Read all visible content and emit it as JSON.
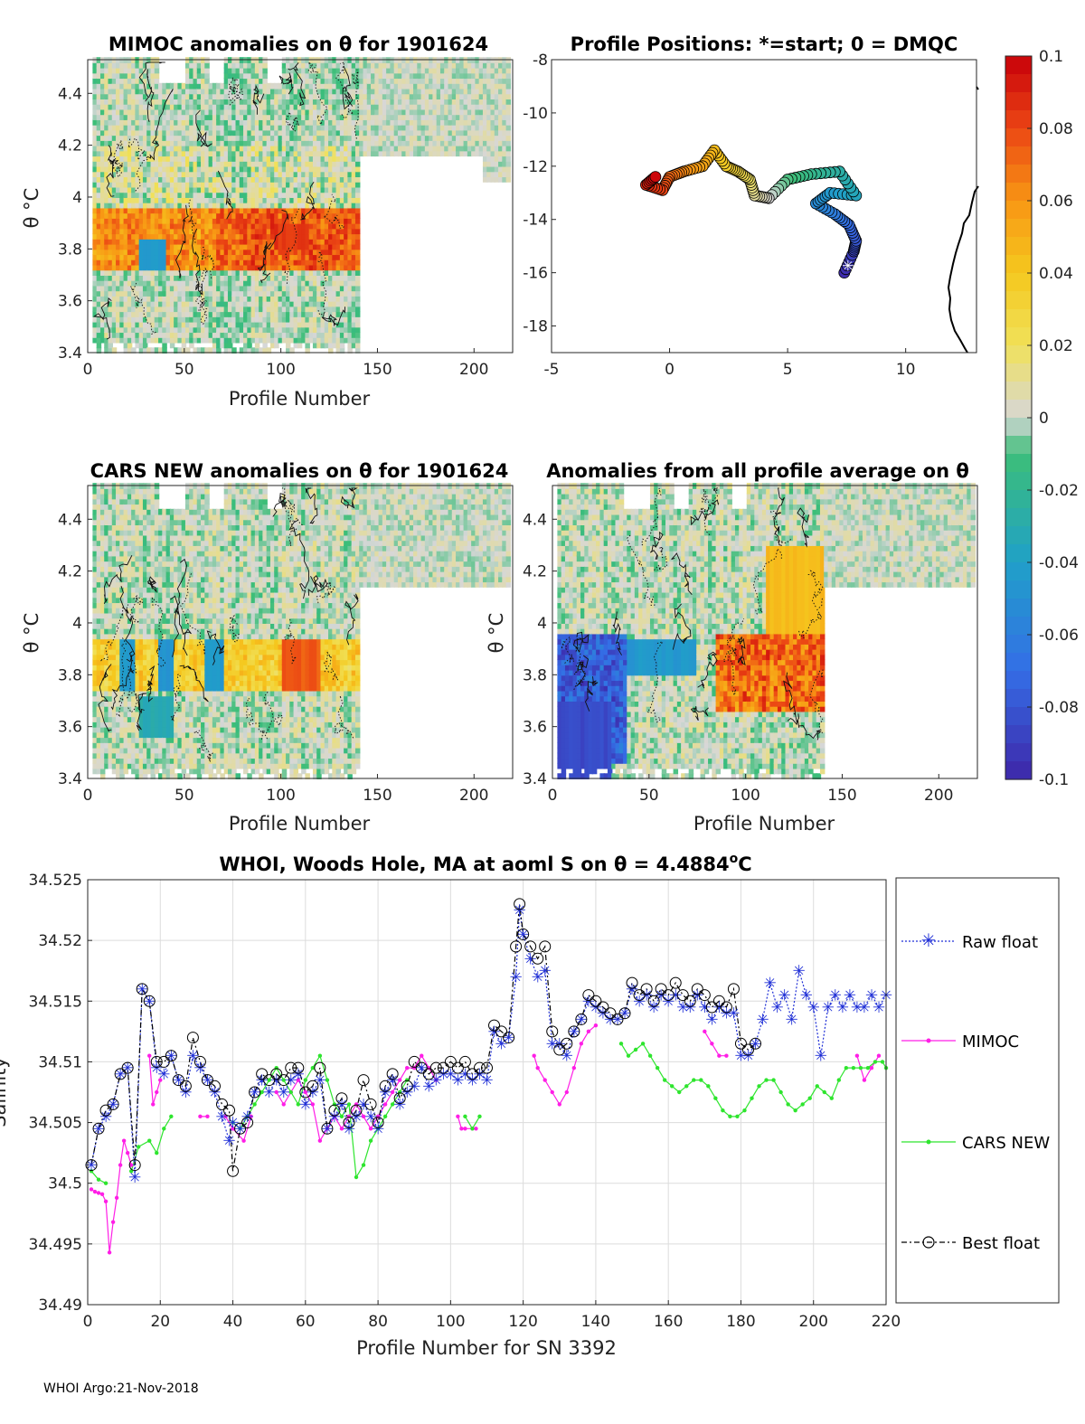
{
  "footer": "WHOI Argo:21-Nov-2018",
  "chart_data": [
    {
      "type": "heatmap",
      "title": "MIMOC anomalies on θ  for 1901624",
      "xlabel": "Profile Number",
      "ylabel": "θ °C",
      "xlim": [
        0,
        220
      ],
      "ylim": [
        3.4,
        4.53
      ],
      "xticks": [
        "0",
        "50",
        "100",
        "150",
        "200"
      ],
      "yticks": [
        "3.4",
        "3.6",
        "3.8",
        "4",
        "4.2",
        "4.4"
      ],
      "anomaly_band": {
        "theta_min": 3.7,
        "theta_max": 3.95,
        "max_anomaly": 0.09,
        "profiles": [
          0,
          140
        ]
      }
    },
    {
      "type": "scatter",
      "title": "Profile Positions: *=start; 0 = DMQC",
      "xlim": [
        -5,
        13
      ],
      "ylim": [
        -19,
        -8
      ],
      "xticks": [
        "-5",
        "0",
        "5",
        "10"
      ],
      "yticks": [
        "-8",
        "-10",
        "-12",
        "-14",
        "-16",
        "-18"
      ],
      "track": [
        [
          7.4,
          -16.0
        ],
        [
          7.8,
          -15.2
        ],
        [
          7.9,
          -14.8
        ],
        [
          7.6,
          -14.2
        ],
        [
          7.0,
          -13.8
        ],
        [
          6.2,
          -13.4
        ],
        [
          6.8,
          -13.0
        ],
        [
          7.9,
          -13.1
        ],
        [
          7.2,
          -12.2
        ],
        [
          6.0,
          -12.3
        ],
        [
          5.0,
          -12.5
        ],
        [
          4.2,
          -13.2
        ],
        [
          3.6,
          -13.1
        ],
        [
          3.4,
          -12.5
        ],
        [
          2.9,
          -12.2
        ],
        [
          2.4,
          -12.0
        ],
        [
          1.9,
          -11.4
        ],
        [
          1.4,
          -12.0
        ],
        [
          0.6,
          -12.2
        ],
        [
          0.0,
          -12.4
        ],
        [
          -0.3,
          -12.9
        ],
        [
          -1.0,
          -12.7
        ],
        [
          -0.6,
          -12.4
        ]
      ],
      "colorbar": {
        "min": -0.1,
        "max": 0.1,
        "ticks": [
          "0.1",
          "0.08",
          "0.06",
          "0.04",
          "0.02",
          "0",
          "-0.02",
          "-0.04",
          "-0.06",
          "-0.08",
          "-0.1"
        ]
      }
    },
    {
      "type": "heatmap",
      "title": "CARS NEW anomalies on θ for 1901624",
      "xlabel": "Profile Number",
      "ylabel": "θ °C",
      "xlim": [
        0,
        220
      ],
      "ylim": [
        3.4,
        4.53
      ],
      "xticks": [
        "0",
        "50",
        "100",
        "150",
        "200"
      ],
      "yticks": [
        "3.4",
        "3.6",
        "3.8",
        "4",
        "4.2",
        "4.4"
      ]
    },
    {
      "type": "heatmap",
      "title": "Anomalies from all profile average on θ",
      "xlabel": "Profile Number",
      "ylabel": "θ °C",
      "xlim": [
        0,
        220
      ],
      "ylim": [
        3.4,
        4.53
      ],
      "xticks": [
        "0",
        "50",
        "100",
        "150",
        "200"
      ],
      "yticks": [
        "3.4",
        "3.6",
        "3.8",
        "4",
        "4.2",
        "4.4"
      ]
    },
    {
      "type": "line",
      "title": "WHOI, Woods Hole, MA at aoml S on θ = 4.4884°C",
      "title_main": "WHOI, Woods Hole, MA at aoml S on θ = 4.4884",
      "title_sup": "o",
      "title_end": "C",
      "xlabel": "Profile Number for SN 3392",
      "ylabel": "Salinity",
      "xlim": [
        0,
        220
      ],
      "ylim": [
        34.49,
        34.525
      ],
      "xticks": [
        "0",
        "20",
        "40",
        "60",
        "80",
        "100",
        "120",
        "140",
        "160",
        "180",
        "200",
        "220"
      ],
      "yticks": [
        "34.49",
        "34.495",
        "34.5",
        "34.505",
        "34.51",
        "34.515",
        "34.52",
        "34.525"
      ],
      "legend": [
        "Raw float",
        "MIMOC",
        "CARS NEW",
        "Best float"
      ],
      "series": [
        {
          "name": "Raw float",
          "x": [
            1,
            3,
            5,
            7,
            9,
            11,
            13,
            15,
            17,
            19,
            21,
            23,
            25,
            27,
            29,
            31,
            33,
            35,
            37,
            39,
            40,
            42,
            44,
            46,
            48,
            50,
            52,
            54,
            56,
            58,
            60,
            62,
            64,
            66,
            68,
            70,
            72,
            74,
            76,
            78,
            80,
            82,
            84,
            86,
            88,
            90,
            92,
            94,
            96,
            98,
            100,
            102,
            104,
            106,
            108,
            110,
            112,
            114,
            116,
            118,
            119,
            120,
            122,
            124,
            126,
            128,
            130,
            132,
            134,
            136,
            138,
            140,
            142,
            144,
            146,
            148,
            150,
            152,
            154,
            156,
            158,
            160,
            162,
            164,
            166,
            168,
            170,
            172,
            174,
            176,
            178,
            180,
            182,
            184,
            186,
            188,
            190,
            192,
            194,
            196,
            198,
            200,
            202,
            204,
            206,
            208,
            210,
            212,
            214,
            216,
            218,
            220
          ],
          "y": [
            34.5015,
            34.5045,
            34.5055,
            34.5065,
            34.509,
            34.5095,
            34.5005,
            34.516,
            34.515,
            34.5095,
            34.509,
            34.5105,
            34.5085,
            34.5075,
            34.5105,
            34.5095,
            34.5085,
            34.5075,
            34.5055,
            34.5035,
            34.505,
            34.5045,
            34.5055,
            34.5075,
            34.5085,
            34.5075,
            34.5085,
            34.5075,
            34.5085,
            34.509,
            34.5065,
            34.5075,
            34.5085,
            34.5045,
            34.5055,
            34.5065,
            34.5045,
            34.5055,
            34.5065,
            34.5055,
            34.5045,
            34.5075,
            34.5085,
            34.5065,
            34.5075,
            34.508,
            34.5095,
            34.508,
            34.5085,
            34.509,
            34.509,
            34.5085,
            34.509,
            34.5085,
            34.509,
            34.5085,
            34.5125,
            34.5115,
            34.512,
            34.517,
            34.5225,
            34.5205,
            34.5185,
            34.517,
            34.5175,
            34.5115,
            34.5115,
            34.5105,
            34.5125,
            34.5135,
            34.515,
            34.5145,
            34.514,
            34.5135,
            34.5135,
            34.514,
            34.516,
            34.515,
            34.5155,
            34.5145,
            34.5155,
            34.515,
            34.5155,
            34.5145,
            34.5145,
            34.5155,
            34.5145,
            34.5135,
            34.5145,
            34.514,
            34.514,
            34.5105,
            34.5105,
            34.5115,
            34.5135,
            34.5165,
            34.5145,
            34.5155,
            34.5135,
            34.5175,
            34.5155,
            34.5145,
            34.5105,
            34.5145,
            34.5155,
            34.5145,
            34.5155,
            34.5145,
            34.5145,
            34.5155,
            34.5145,
            34.5155
          ]
        },
        {
          "name": "MIMOC",
          "x": [
            1,
            2,
            3,
            4,
            5,
            6,
            7,
            8,
            9,
            10,
            11,
            12,
            17,
            18,
            19,
            20,
            31,
            33,
            38,
            40,
            43,
            45,
            52,
            54,
            56,
            58,
            60,
            62,
            64,
            66,
            68,
            70,
            72,
            74,
            76,
            78,
            80,
            82,
            84,
            86,
            88,
            90,
            92,
            94,
            96,
            102,
            103,
            104,
            106,
            107,
            123,
            124,
            126,
            128,
            130,
            132,
            134,
            136,
            138,
            140,
            170,
            172,
            174,
            176,
            212,
            214,
            216,
            218
          ],
          "y": [
            34.4995,
            34.4993,
            34.4992,
            34.4991,
            34.4985,
            34.4943,
            34.4968,
            34.4988,
            34.5015,
            34.5035,
            34.5025,
            34.5015,
            34.5105,
            34.5065,
            34.5075,
            34.5085,
            34.5055,
            34.5055,
            34.5055,
            34.5045,
            34.5035,
            34.5055,
            34.5075,
            34.5065,
            34.5075,
            34.5085,
            34.5075,
            34.5065,
            34.5035,
            34.5045,
            34.5055,
            34.5045,
            34.5055,
            34.5065,
            34.5055,
            34.5045,
            34.5055,
            34.5065,
            34.5075,
            34.5085,
            34.5095,
            34.5095,
            34.5105,
            34.5095,
            34.5085,
            34.5055,
            34.5045,
            34.5045,
            34.5045,
            34.5045,
            34.5105,
            34.5095,
            34.5085,
            34.5075,
            34.5065,
            34.5075,
            34.5095,
            34.5115,
            34.5125,
            34.513,
            34.5125,
            34.5115,
            34.5105,
            34.5105,
            34.5105,
            34.5085,
            34.5095,
            34.5105
          ]
        },
        {
          "name": "CARS NEW",
          "x": [
            1,
            3,
            5,
            12,
            14,
            17,
            19,
            21,
            23,
            40,
            42,
            44,
            46,
            48,
            50,
            52,
            54,
            56,
            58,
            60,
            62,
            64,
            66,
            68,
            70,
            72,
            74,
            76,
            78,
            80,
            82,
            84,
            86,
            88,
            104,
            106,
            108,
            147,
            149,
            151,
            153,
            155,
            157,
            159,
            161,
            163,
            165,
            167,
            169,
            171,
            173,
            175,
            177,
            179,
            181,
            183,
            185,
            187,
            189,
            191,
            193,
            195,
            197,
            199,
            201,
            203,
            205,
            207,
            209,
            211,
            213,
            215,
            217,
            219,
            220
          ],
          "y": [
            34.501,
            34.5003,
            34.5,
            34.501,
            34.503,
            34.5035,
            34.5025,
            34.5045,
            34.5055,
            34.505,
            34.5045,
            34.5055,
            34.5065,
            34.5075,
            34.5085,
            34.5095,
            34.5085,
            34.5075,
            34.5065,
            34.5085,
            34.5095,
            34.5105,
            34.5085,
            34.5065,
            34.5055,
            34.5065,
            34.5005,
            34.5015,
            34.5035,
            34.5045,
            34.5055,
            34.5065,
            34.5075,
            34.5085,
            34.5055,
            34.5045,
            34.5055,
            34.5115,
            34.5105,
            34.511,
            34.5115,
            34.5105,
            34.5095,
            34.5085,
            34.508,
            34.5075,
            34.508,
            34.5085,
            34.5085,
            34.508,
            34.507,
            34.506,
            34.5055,
            34.5055,
            34.506,
            34.507,
            34.508,
            34.5085,
            34.5085,
            34.5075,
            34.5065,
            34.506,
            34.5065,
            34.507,
            34.508,
            34.5075,
            34.507,
            34.5085,
            34.5095,
            34.5095,
            34.5095,
            34.5095,
            34.51,
            34.51,
            34.5095
          ]
        },
        {
          "name": "Best float",
          "x": [
            1,
            3,
            5,
            7,
            9,
            11,
            13,
            15,
            17,
            19,
            21,
            23,
            25,
            27,
            29,
            31,
            33,
            35,
            37,
            39,
            40,
            42,
            44,
            46,
            48,
            50,
            52,
            54,
            56,
            58,
            60,
            62,
            64,
            66,
            68,
            70,
            72,
            74,
            76,
            78,
            80,
            82,
            84,
            86,
            88,
            90,
            92,
            94,
            96,
            98,
            100,
            102,
            104,
            106,
            108,
            110,
            112,
            114,
            116,
            118,
            119,
            120,
            122,
            124,
            126,
            128,
            130,
            132,
            134,
            136,
            138,
            140,
            142,
            144,
            146,
            148,
            150,
            152,
            154,
            156,
            158,
            160,
            162,
            164,
            166,
            168,
            170,
            172,
            174,
            176,
            178,
            180,
            182,
            184
          ],
          "y": [
            34.5015,
            34.5045,
            34.506,
            34.5065,
            34.509,
            34.5095,
            34.5015,
            34.516,
            34.515,
            34.51,
            34.51,
            34.5105,
            34.5085,
            34.508,
            34.512,
            34.51,
            34.5085,
            34.508,
            34.5065,
            34.506,
            34.501,
            34.5045,
            34.505,
            34.5075,
            34.509,
            34.5085,
            34.509,
            34.5085,
            34.5095,
            34.5095,
            34.5075,
            34.508,
            34.5095,
            34.5045,
            34.506,
            34.507,
            34.505,
            34.506,
            34.5085,
            34.5065,
            34.505,
            34.508,
            34.509,
            34.507,
            34.508,
            34.51,
            34.5095,
            34.509,
            34.5095,
            34.5095,
            34.51,
            34.5095,
            34.51,
            34.509,
            34.5095,
            34.5095,
            34.513,
            34.5125,
            34.512,
            34.5195,
            34.523,
            34.5205,
            34.5195,
            34.5185,
            34.5195,
            34.5125,
            34.511,
            34.5115,
            34.5125,
            34.5135,
            34.5155,
            34.515,
            34.5145,
            34.514,
            34.5135,
            34.514,
            34.5165,
            34.5155,
            34.516,
            34.515,
            34.516,
            34.5155,
            34.5165,
            34.5155,
            34.515,
            34.516,
            34.5155,
            34.5145,
            34.515,
            34.5145,
            34.516,
            34.5115,
            34.511,
            34.5115
          ]
        }
      ]
    }
  ]
}
